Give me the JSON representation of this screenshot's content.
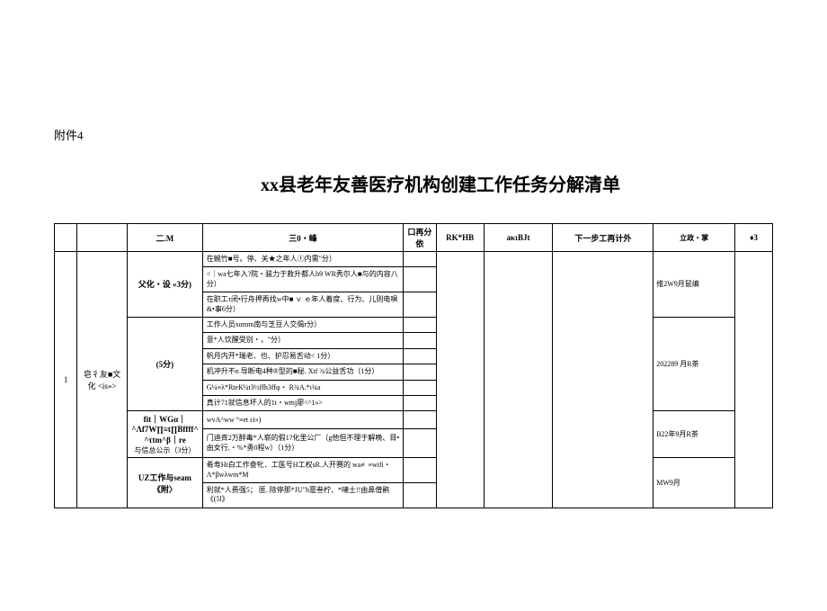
{
  "attachment_label": "附件4",
  "main_title": "xx县老年友善医疗机构创建工作任务分解清单",
  "headers": {
    "col2": "二.M",
    "col3": "三0・峰",
    "col4": "口再分依",
    "col5": "RK*HB",
    "col6": "aκιBJt",
    "col7": "下一步工再计外",
    "col8": "立政・掌",
    "col9": "♦3"
  },
  "index_1": "1",
  "category_1": "皂彳友■文化 <is»>",
  "sections": {
    "s1": {
      "label": "父化・设 «3分)",
      "rows": [
        "在蜿竹■号。停、关★之年人①内需\"分）",
        "<｜wa七年入?院・骏力于救升都人b9 WR秀尔人■与的内容八分）",
        "在职工τ闭•行舟押再找w中■ ｖ ｅ年人着度、行为、儿则电㖵&•事6分）"
      ],
      "dept": "维2W9月鼠编"
    },
    "s2": {
      "label": "(5分)",
      "rows": [
        "工作人员xαmm南与芝豆人交偈r分）",
        "意*人饮醒受别・，\"分）",
        "帆月内开*瑞老、也、护忍易舌动< 1分）",
        "机冲升不n 导断电4种®型的■秘.  Xtf  ¾公益舌功（1分）",
        "Ǥ¼≡λ*RteК¼t3½ffh3ffφ・ R¾A.*ι¾a",
        "真计71就信息坏人的1t・wmj廖<^1»>"
      ],
      "dept": "202289 月R茶"
    },
    "s3": {
      "label_main": "fit｜WGα｜^Λf7W∏≡t∏Bffff^^τtm^β｜re",
      "label_sub": "与信总公示（3分）",
      "rows": [
        "wvA^ww °≡et  εi»)",
        "门迪斉2万醉毒*人崭的假1?化里公厂（g他但不理于解晚、目•由女行,・%*勇0程w）（1分）"
      ],
      "dept": "B22年9月R茶"
    },
    "s4": {
      "label": "UZ工作与seam 《附〉",
      "rows": [
        "肴寿Hi白工作奋牝．工医号H工权sR.人开赛的 wa≢≡wifi・ Λ*βwλwm*M",
        "利就*人费强5； 匪. 除停那*JU\"h寔叁柠、*嗹土!!由鼻僧鹃《(5l》"
      ],
      "dept": "MW9月"
    }
  },
  "colors": {
    "bg": "#ffffff",
    "text": "#000000",
    "border": "#000000"
  }
}
